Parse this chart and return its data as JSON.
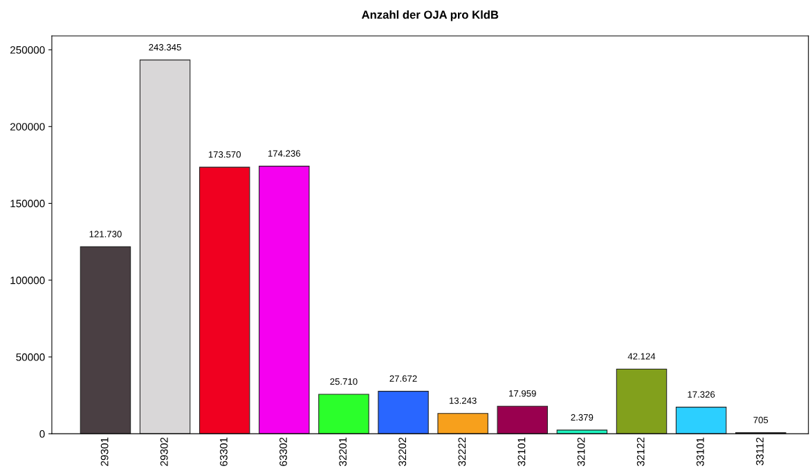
{
  "chart_data": {
    "type": "bar",
    "title": "Anzahl der OJA pro KldB",
    "categories": [
      "29301",
      "29302",
      "63301",
      "63302",
      "32201",
      "32202",
      "32222",
      "32101",
      "32102",
      "32122",
      "33101",
      "33112"
    ],
    "values": [
      121730,
      243345,
      173570,
      174236,
      25710,
      27672,
      13243,
      17959,
      2379,
      42124,
      17326,
      705
    ],
    "value_labels": [
      "121.730",
      "243.345",
      "173.570",
      "174.236",
      "25.710",
      "27.672",
      "13.243",
      "17.959",
      "2.379",
      "42.124",
      "17.326",
      "705"
    ],
    "colors": [
      "#4a3f43",
      "#d9d7d8",
      "#f00020",
      "#f500f0",
      "#2bff2b",
      "#2966ff",
      "#f7a01c",
      "#99004f",
      "#1df5c0",
      "#82a01c",
      "#2ccfff",
      "#4a3f43"
    ],
    "ylim": [
      0,
      259000
    ],
    "yticks": [
      0,
      50000,
      100000,
      150000,
      200000,
      250000
    ],
    "grid": false,
    "legend": false
  }
}
